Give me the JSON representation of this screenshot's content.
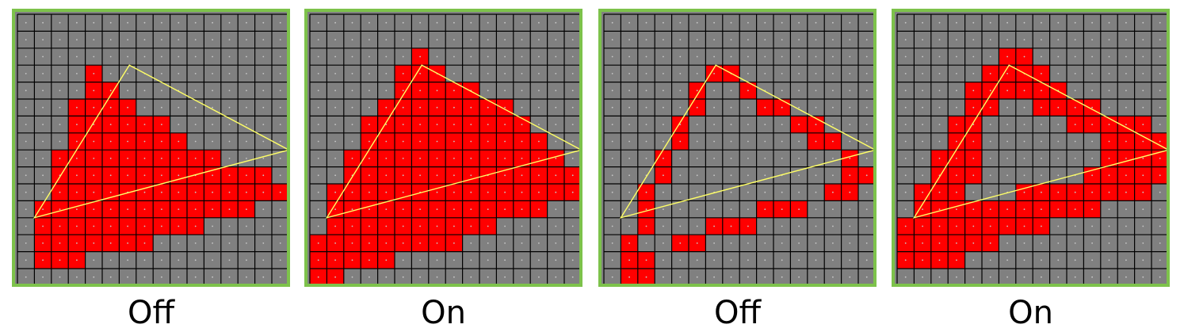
{
  "colors": {
    "frame": "#7dc24b",
    "background": "#808080",
    "grid": "#000000",
    "sample_dot": "#c8c8c8",
    "covered_pixel": "#ff0000",
    "triangle_edge": "#ffff66"
  },
  "panels": [
    {
      "caption": "Off",
      "mode": "filled",
      "rows": [
        [
          3,
          4,
          4
        ],
        [
          4,
          4,
          5
        ],
        [
          5,
          3,
          6
        ],
        [
          6,
          3,
          8
        ],
        [
          7,
          3,
          9
        ],
        [
          8,
          2,
          11
        ],
        [
          9,
          2,
          14
        ],
        [
          10,
          2,
          15
        ],
        [
          11,
          1,
          13
        ],
        [
          12,
          1,
          10
        ],
        [
          13,
          1,
          7
        ],
        [
          14,
          1,
          3
        ]
      ]
    },
    {
      "caption": "On",
      "mode": "filled",
      "rows": [
        [
          2,
          6,
          6
        ],
        [
          3,
          5,
          7
        ],
        [
          4,
          5,
          9
        ],
        [
          5,
          4,
          11
        ],
        [
          6,
          3,
          12
        ],
        [
          7,
          3,
          13
        ],
        [
          8,
          2,
          14
        ],
        [
          9,
          2,
          15
        ],
        [
          10,
          1,
          15
        ],
        [
          11,
          1,
          13
        ],
        [
          12,
          1,
          10
        ],
        [
          13,
          0,
          8
        ],
        [
          14,
          0,
          4
        ],
        [
          15,
          0,
          1
        ]
      ]
    },
    {
      "caption": "Off",
      "mode": "cells",
      "cells": [
        [
          3,
          6
        ],
        [
          3,
          7
        ],
        [
          4,
          5
        ],
        [
          4,
          8
        ],
        [
          5,
          5
        ],
        [
          5,
          9
        ],
        [
          5,
          10
        ],
        [
          6,
          4
        ],
        [
          6,
          11
        ],
        [
          6,
          12
        ],
        [
          7,
          4
        ],
        [
          7,
          12
        ],
        [
          7,
          13
        ],
        [
          8,
          3
        ],
        [
          8,
          14
        ],
        [
          9,
          3
        ],
        [
          9,
          14
        ],
        [
          9,
          15
        ],
        [
          10,
          2
        ],
        [
          10,
          13
        ],
        [
          10,
          14
        ],
        [
          11,
          2
        ],
        [
          11,
          9
        ],
        [
          11,
          10
        ],
        [
          11,
          11
        ],
        [
          12,
          2
        ],
        [
          12,
          6
        ],
        [
          12,
          7
        ],
        [
          12,
          8
        ],
        [
          13,
          1
        ],
        [
          13,
          4
        ],
        [
          13,
          5
        ],
        [
          14,
          1
        ],
        [
          14,
          2
        ],
        [
          15,
          1
        ],
        [
          15,
          2
        ]
      ]
    },
    {
      "caption": "On",
      "mode": "cells",
      "cells": [
        [
          2,
          6
        ],
        [
          2,
          7
        ],
        [
          3,
          5
        ],
        [
          3,
          6
        ],
        [
          3,
          7
        ],
        [
          3,
          8
        ],
        [
          4,
          4
        ],
        [
          4,
          5
        ],
        [
          4,
          6
        ],
        [
          4,
          7
        ],
        [
          4,
          8
        ],
        [
          4,
          9
        ],
        [
          5,
          4
        ],
        [
          5,
          5
        ],
        [
          5,
          8
        ],
        [
          5,
          9
        ],
        [
          5,
          10
        ],
        [
          5,
          11
        ],
        [
          6,
          3
        ],
        [
          6,
          4
        ],
        [
          6,
          10
        ],
        [
          6,
          11
        ],
        [
          6,
          12
        ],
        [
          6,
          13
        ],
        [
          6,
          14
        ],
        [
          7,
          3
        ],
        [
          7,
          4
        ],
        [
          7,
          12
        ],
        [
          7,
          13
        ],
        [
          7,
          14
        ],
        [
          7,
          15
        ],
        [
          8,
          2
        ],
        [
          8,
          3
        ],
        [
          8,
          4
        ],
        [
          8,
          12
        ],
        [
          8,
          13
        ],
        [
          8,
          14
        ],
        [
          8,
          15
        ],
        [
          9,
          2
        ],
        [
          9,
          3
        ],
        [
          9,
          4
        ],
        [
          9,
          11
        ],
        [
          9,
          12
        ],
        [
          9,
          13
        ],
        [
          9,
          14
        ],
        [
          9,
          15
        ],
        [
          10,
          1
        ],
        [
          10,
          2
        ],
        [
          10,
          3
        ],
        [
          10,
          7
        ],
        [
          10,
          8
        ],
        [
          10,
          9
        ],
        [
          10,
          10
        ],
        [
          10,
          11
        ],
        [
          10,
          12
        ],
        [
          10,
          13
        ],
        [
          10,
          14
        ],
        [
          11,
          1
        ],
        [
          11,
          2
        ],
        [
          11,
          3
        ],
        [
          11,
          4
        ],
        [
          11,
          5
        ],
        [
          11,
          6
        ],
        [
          11,
          7
        ],
        [
          11,
          8
        ],
        [
          11,
          9
        ],
        [
          11,
          10
        ],
        [
          11,
          11
        ],
        [
          12,
          0
        ],
        [
          12,
          1
        ],
        [
          12,
          2
        ],
        [
          12,
          3
        ],
        [
          12,
          4
        ],
        [
          12,
          5
        ],
        [
          12,
          6
        ],
        [
          12,
          7
        ],
        [
          12,
          8
        ],
        [
          13,
          0
        ],
        [
          13,
          1
        ],
        [
          13,
          2
        ],
        [
          13,
          3
        ],
        [
          13,
          4
        ],
        [
          13,
          5
        ],
        [
          14,
          0
        ],
        [
          14,
          1
        ],
        [
          14,
          2
        ],
        [
          14,
          3
        ]
      ]
    }
  ]
}
